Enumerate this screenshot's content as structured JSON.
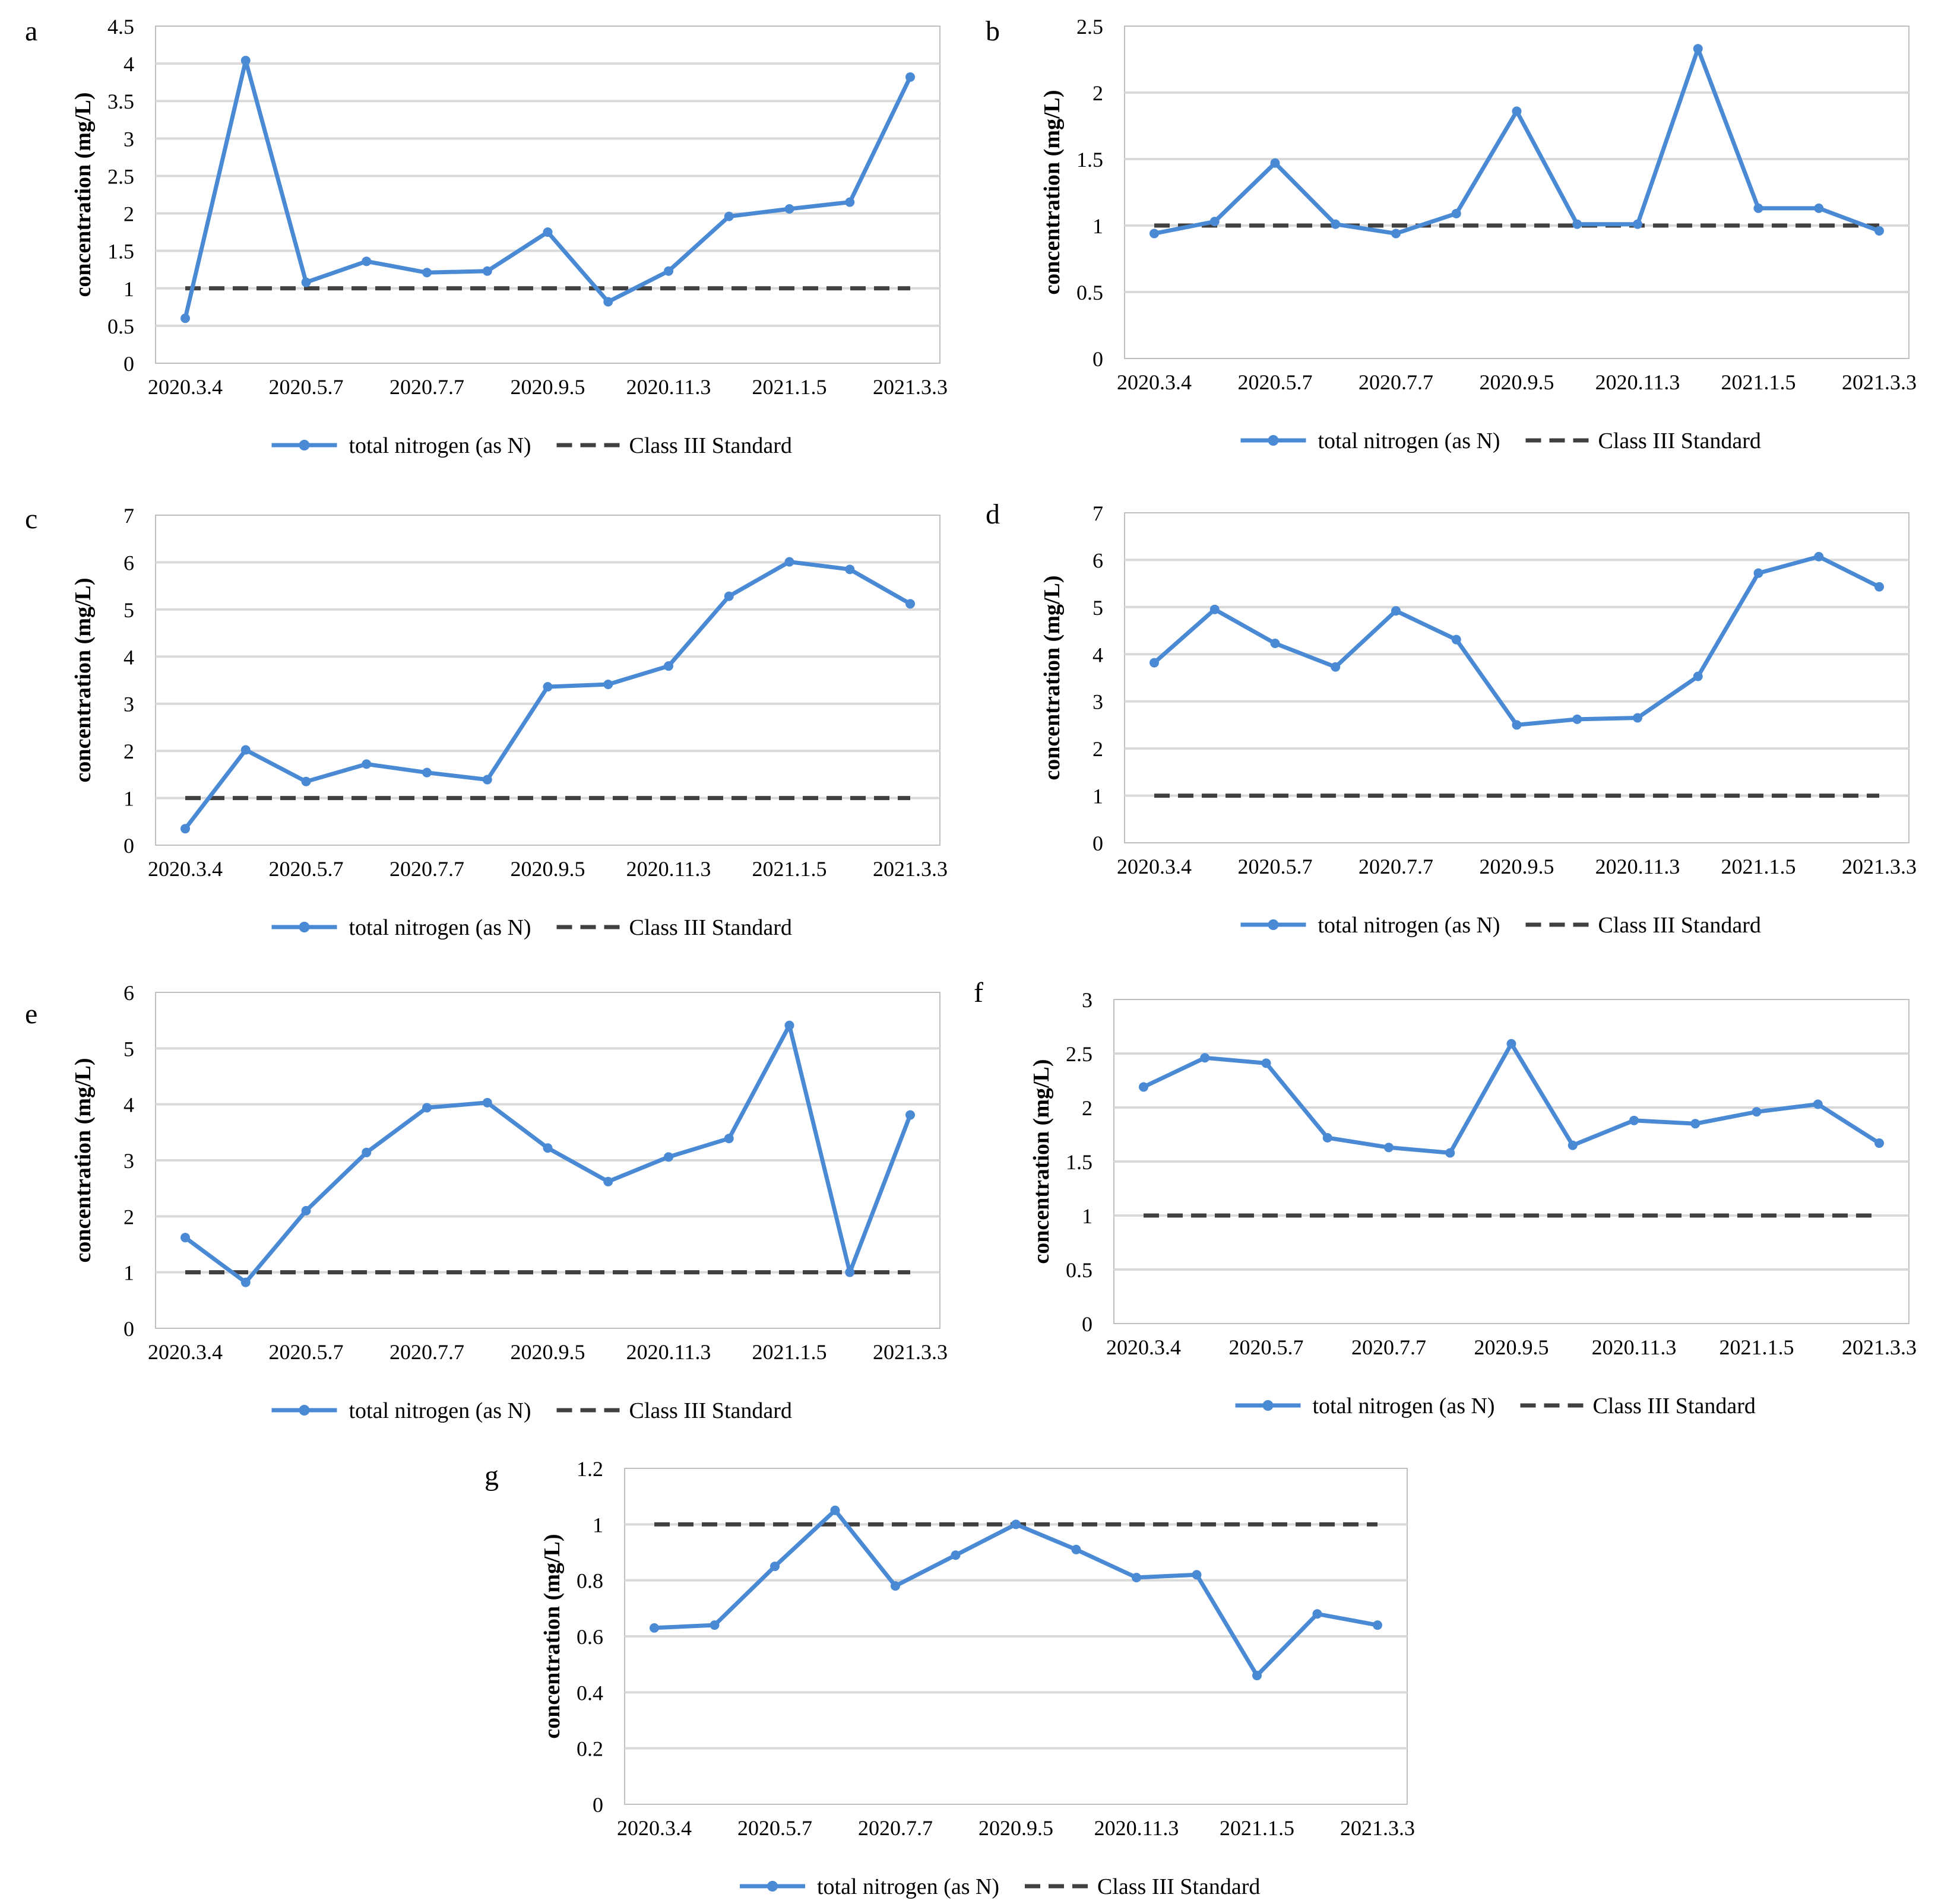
{
  "colors": {
    "series": "#4a8ad4",
    "standard": "#404040",
    "grid": "#d9d9d9",
    "axis": "#bfbfbf",
    "text": "#000000"
  },
  "common": {
    "ylabel": "concentration (mg/L)",
    "legend_series": "total nitrogen (as N)",
    "legend_standard": "Class III Standard",
    "xticks": [
      "2020.3.4",
      "2020.5.7",
      "2020.7.7",
      "2020.9.5",
      "2020.11.3",
      "2021.1.5",
      "2021.3.3"
    ]
  },
  "chart_data": [
    {
      "panel": "a",
      "type": "line",
      "ylim": [
        0,
        4.5
      ],
      "yticks": [
        "0",
        "0.5",
        "1",
        "1.5",
        "2",
        "2.5",
        "3",
        "3.5",
        "4",
        "4.5"
      ],
      "values": [
        0.6,
        4.04,
        1.08,
        1.36,
        1.21,
        1.23,
        1.75,
        0.82,
        1.23,
        1.96,
        2.06,
        2.15,
        3.82
      ],
      "standard": 1
    },
    {
      "panel": "b",
      "type": "line",
      "ylim": [
        0,
        2.5
      ],
      "yticks": [
        "0",
        "0.5",
        "1",
        "1.5",
        "2",
        "2.5"
      ],
      "values": [
        0.94,
        1.03,
        1.47,
        1.01,
        0.94,
        1.09,
        1.86,
        1.01,
        1.01,
        2.33,
        1.13,
        1.13,
        0.96
      ],
      "standard": 1
    },
    {
      "panel": "c",
      "type": "line",
      "ylim": [
        0,
        7
      ],
      "yticks": [
        "0",
        "1",
        "2",
        "3",
        "4",
        "5",
        "6",
        "7"
      ],
      "values": [
        0.35,
        2.02,
        1.35,
        1.72,
        1.54,
        1.39,
        3.36,
        3.41,
        3.8,
        5.28,
        6.01,
        5.85,
        5.12
      ],
      "standard": 1
    },
    {
      "panel": "d",
      "type": "line",
      "ylim": [
        0,
        7
      ],
      "yticks": [
        "0",
        "1",
        "2",
        "3",
        "4",
        "5",
        "6",
        "7"
      ],
      "values": [
        3.82,
        4.95,
        4.23,
        3.73,
        4.92,
        4.31,
        2.5,
        2.62,
        2.65,
        3.53,
        5.72,
        6.07,
        5.43
      ],
      "standard": 1
    },
    {
      "panel": "e",
      "type": "line",
      "ylim": [
        0,
        6
      ],
      "yticks": [
        "0",
        "1",
        "2",
        "3",
        "4",
        "5",
        "6"
      ],
      "values": [
        1.62,
        0.82,
        2.1,
        3.14,
        3.94,
        4.03,
        3.22,
        2.62,
        3.06,
        3.39,
        5.41,
        1.0,
        3.81
      ],
      "standard": 1
    },
    {
      "panel": "f",
      "type": "line",
      "ylim": [
        0,
        3
      ],
      "yticks": [
        "0",
        "0.5",
        "1",
        "1.5",
        "2",
        "2.5",
        "3"
      ],
      "values": [
        2.19,
        2.46,
        2.41,
        1.72,
        1.63,
        1.58,
        2.59,
        1.65,
        1.88,
        1.85,
        1.96,
        2.03,
        1.67
      ],
      "standard": 1
    },
    {
      "panel": "g",
      "type": "line",
      "ylim": [
        0,
        1.2
      ],
      "yticks": [
        "0",
        "0.2",
        "0.4",
        "0.6",
        "0.8",
        "1",
        "1.2"
      ],
      "values": [
        0.63,
        0.64,
        0.85,
        1.05,
        0.78,
        0.89,
        1.0,
        0.91,
        0.81,
        0.82,
        0.46,
        0.68,
        0.64
      ],
      "standard": 1
    }
  ]
}
